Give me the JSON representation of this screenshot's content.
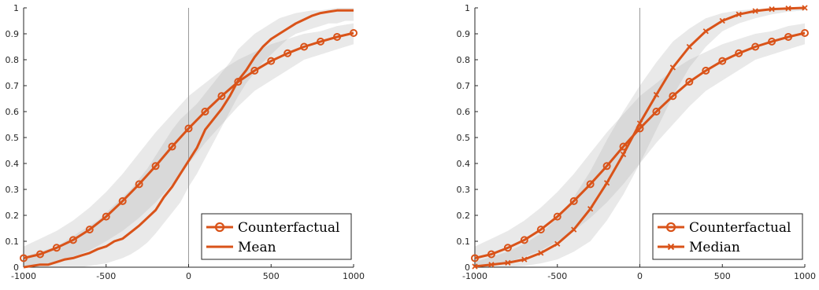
{
  "chart_data": [
    {
      "type": "line",
      "xlim": [
        -1000,
        1000
      ],
      "ylim": [
        0,
        1
      ],
      "xticks": [
        -1000,
        -500,
        0,
        500,
        1000
      ],
      "xtick_labels": [
        "-1000",
        "-500",
        "0",
        "500",
        "1000"
      ],
      "yticks": [
        0,
        0.1,
        0.2,
        0.3,
        0.4,
        0.5,
        0.6,
        0.7,
        0.8,
        0.9,
        1
      ],
      "ytick_labels": [
        "0",
        "0.1",
        "0.2",
        "0.3",
        "0.4",
        "0.5",
        "0.6",
        "0.7",
        "0.8",
        "0.9",
        "1"
      ],
      "grid": false,
      "vertical_reference_line_x": 0,
      "legend_position": "bottom-right",
      "series": [
        {
          "name": "Counterfactual",
          "marker": "circle",
          "color": "#d95319",
          "x": [
            -1000,
            -900,
            -800,
            -700,
            -600,
            -500,
            -400,
            -300,
            -200,
            -100,
            0,
            100,
            200,
            300,
            400,
            500,
            600,
            700,
            800,
            900,
            1000
          ],
          "y": [
            0.035,
            0.05,
            0.075,
            0.105,
            0.145,
            0.195,
            0.255,
            0.32,
            0.39,
            0.465,
            0.535,
            0.6,
            0.66,
            0.715,
            0.758,
            0.795,
            0.825,
            0.85,
            0.87,
            0.888,
            0.903
          ],
          "band_lower": [
            0.0,
            0.005,
            0.02,
            0.04,
            0.065,
            0.1,
            0.14,
            0.19,
            0.25,
            0.32,
            0.4,
            0.48,
            0.55,
            0.62,
            0.68,
            0.72,
            0.76,
            0.8,
            0.82,
            0.84,
            0.86
          ],
          "band_upper": [
            0.08,
            0.11,
            0.14,
            0.18,
            0.23,
            0.29,
            0.36,
            0.44,
            0.52,
            0.59,
            0.66,
            0.71,
            0.76,
            0.8,
            0.83,
            0.86,
            0.88,
            0.9,
            0.91,
            0.93,
            0.94
          ]
        },
        {
          "name": "Mean",
          "marker": "none",
          "color": "#d95319",
          "x": [
            -1000,
            -950,
            -900,
            -850,
            -800,
            -750,
            -700,
            -650,
            -600,
            -550,
            -500,
            -450,
            -400,
            -350,
            -300,
            -250,
            -200,
            -150,
            -100,
            -50,
            0,
            50,
            100,
            150,
            200,
            250,
            300,
            350,
            400,
            450,
            500,
            550,
            600,
            650,
            700,
            750,
            800,
            850,
            900,
            950,
            1000
          ],
          "y": [
            0.0,
            0.005,
            0.01,
            0.01,
            0.02,
            0.03,
            0.035,
            0.045,
            0.055,
            0.07,
            0.08,
            0.1,
            0.11,
            0.135,
            0.16,
            0.19,
            0.22,
            0.27,
            0.31,
            0.36,
            0.41,
            0.46,
            0.53,
            0.57,
            0.61,
            0.66,
            0.72,
            0.76,
            0.81,
            0.85,
            0.88,
            0.9,
            0.92,
            0.94,
            0.955,
            0.97,
            0.98,
            0.985,
            0.99,
            0.99,
            0.99
          ],
          "band_lower": [
            0.0,
            0.0,
            0.0,
            0.0,
            0.0,
            0.0,
            0.0,
            0.0,
            0.005,
            0.01,
            0.015,
            0.025,
            0.035,
            0.05,
            0.07,
            0.095,
            0.13,
            0.17,
            0.21,
            0.25,
            0.31,
            0.36,
            0.42,
            0.48,
            0.54,
            0.6,
            0.66,
            0.71,
            0.75,
            0.79,
            0.82,
            0.85,
            0.88,
            0.9,
            0.91,
            0.92,
            0.93,
            0.94,
            0.94,
            0.95,
            0.95
          ],
          "band_upper": [
            0.04,
            0.05,
            0.06,
            0.07,
            0.08,
            0.1,
            0.12,
            0.14,
            0.16,
            0.18,
            0.21,
            0.24,
            0.27,
            0.3,
            0.34,
            0.38,
            0.43,
            0.48,
            0.53,
            0.57,
            0.6,
            0.63,
            0.67,
            0.71,
            0.75,
            0.79,
            0.84,
            0.87,
            0.9,
            0.92,
            0.94,
            0.96,
            0.97,
            0.98,
            0.985,
            0.99,
            0.99,
            0.995,
            1.0,
            1.0,
            1.0
          ]
        }
      ]
    },
    {
      "type": "line",
      "xlim": [
        -1000,
        1000
      ],
      "ylim": [
        0,
        1
      ],
      "xticks": [
        -1000,
        -500,
        0,
        500,
        1000
      ],
      "xtick_labels": [
        "-1000",
        "-500",
        "0",
        "500",
        "1000"
      ],
      "yticks": [
        0,
        0.1,
        0.2,
        0.3,
        0.4,
        0.5,
        0.6,
        0.7,
        0.8,
        0.9,
        1
      ],
      "ytick_labels": [
        "0",
        "0.1",
        "0.2",
        "0.3",
        "0.4",
        "0.5",
        "0.6",
        "0.7",
        "0.8",
        "0.9",
        "1"
      ],
      "grid": false,
      "vertical_reference_line_x": 0,
      "legend_position": "bottom-right",
      "series": [
        {
          "name": "Counterfactual",
          "marker": "circle",
          "color": "#d95319",
          "x": [
            -1000,
            -900,
            -800,
            -700,
            -600,
            -500,
            -400,
            -300,
            -200,
            -100,
            0,
            100,
            200,
            300,
            400,
            500,
            600,
            700,
            800,
            900,
            1000
          ],
          "y": [
            0.035,
            0.05,
            0.075,
            0.105,
            0.145,
            0.195,
            0.255,
            0.32,
            0.39,
            0.465,
            0.535,
            0.6,
            0.66,
            0.715,
            0.758,
            0.795,
            0.825,
            0.85,
            0.87,
            0.888,
            0.903
          ],
          "band_lower": [
            0.0,
            0.005,
            0.02,
            0.04,
            0.065,
            0.1,
            0.14,
            0.19,
            0.25,
            0.32,
            0.4,
            0.48,
            0.55,
            0.62,
            0.68,
            0.72,
            0.76,
            0.8,
            0.82,
            0.84,
            0.86
          ],
          "band_upper": [
            0.08,
            0.11,
            0.14,
            0.18,
            0.23,
            0.29,
            0.36,
            0.44,
            0.52,
            0.59,
            0.66,
            0.71,
            0.76,
            0.8,
            0.83,
            0.86,
            0.88,
            0.9,
            0.91,
            0.93,
            0.94
          ]
        },
        {
          "name": "Median",
          "marker": "x",
          "color": "#d95319",
          "x": [
            -1000,
            -900,
            -800,
            -700,
            -600,
            -500,
            -400,
            -300,
            -200,
            -100,
            0,
            100,
            200,
            300,
            400,
            500,
            600,
            700,
            800,
            900,
            1000
          ],
          "y": [
            0.003,
            0.01,
            0.017,
            0.03,
            0.055,
            0.09,
            0.145,
            0.225,
            0.325,
            0.435,
            0.555,
            0.665,
            0.77,
            0.85,
            0.91,
            0.95,
            0.975,
            0.988,
            0.995,
            0.998,
            1.0
          ],
          "band_lower": [
            0.0,
            0.0,
            0.0,
            0.005,
            0.015,
            0.03,
            0.06,
            0.1,
            0.18,
            0.28,
            0.4,
            0.53,
            0.66,
            0.77,
            0.85,
            0.91,
            0.94,
            0.96,
            0.975,
            0.985,
            0.99
          ],
          "band_upper": [
            0.02,
            0.04,
            0.06,
            0.09,
            0.13,
            0.19,
            0.27,
            0.37,
            0.49,
            0.6,
            0.7,
            0.79,
            0.87,
            0.92,
            0.96,
            0.98,
            0.99,
            0.995,
            1.0,
            1.0,
            1.0
          ]
        }
      ]
    }
  ]
}
